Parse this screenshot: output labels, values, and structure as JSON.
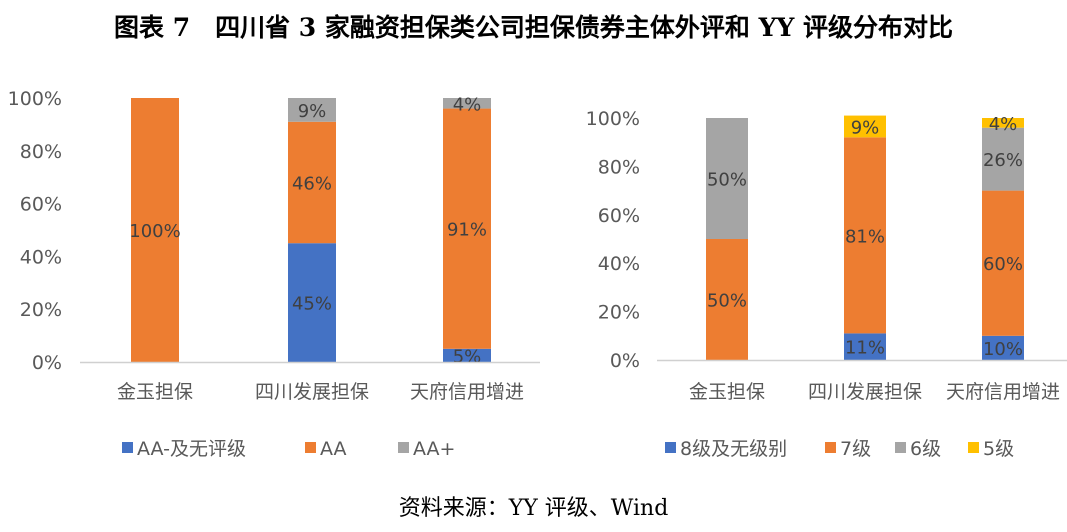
{
  "title": "图表 7　四川省 3 家融资担保类公司担保债券主体外评和 YY 评级分布对比",
  "source": "资料来源：YY 评级、Wind",
  "chart_data": [
    {
      "type": "bar",
      "stacked": true,
      "categories": [
        "金玉担保",
        "四川发展担保",
        "天府信用增进"
      ],
      "yticks": [
        "0%",
        "20%",
        "40%",
        "60%",
        "80%",
        "100%"
      ],
      "ylim": [
        0,
        100
      ],
      "legend_position": "bottom",
      "grid": false,
      "series": [
        {
          "name": "AA-及无评级",
          "color": "#4472C4",
          "values": [
            0,
            45,
            5
          ],
          "labels": [
            "",
            "45%",
            "5%"
          ]
        },
        {
          "name": "AA",
          "color": "#ED7D31",
          "values": [
            100,
            46,
            91
          ],
          "labels": [
            "100%",
            "46%",
            "91%"
          ]
        },
        {
          "name": "AA+",
          "color": "#A5A5A5",
          "values": [
            0,
            9,
            4
          ],
          "labels": [
            "",
            "9%",
            "4%"
          ]
        }
      ]
    },
    {
      "type": "bar",
      "stacked": true,
      "categories": [
        "金玉担保",
        "四川发展担保",
        "天府信用增进"
      ],
      "yticks": [
        "0%",
        "20%",
        "40%",
        "60%",
        "80%",
        "100%"
      ],
      "ylim": [
        0,
        100
      ],
      "legend_position": "bottom",
      "grid": false,
      "series": [
        {
          "name": "8级及无级别",
          "color": "#4472C4",
          "values": [
            0,
            11,
            10
          ],
          "labels": [
            "",
            "11%",
            "10%"
          ]
        },
        {
          "name": "7级",
          "color": "#ED7D31",
          "values": [
            50,
            81,
            60
          ],
          "labels": [
            "50%",
            "81%",
            "60%"
          ]
        },
        {
          "name": "6级",
          "color": "#A5A5A5",
          "values": [
            50,
            0,
            26
          ],
          "labels": [
            "50%",
            "",
            "26%"
          ]
        },
        {
          "name": "5级",
          "color": "#FFC000",
          "values": [
            0,
            9,
            4
          ],
          "labels": [
            "",
            "9%",
            "4%"
          ]
        }
      ]
    }
  ]
}
